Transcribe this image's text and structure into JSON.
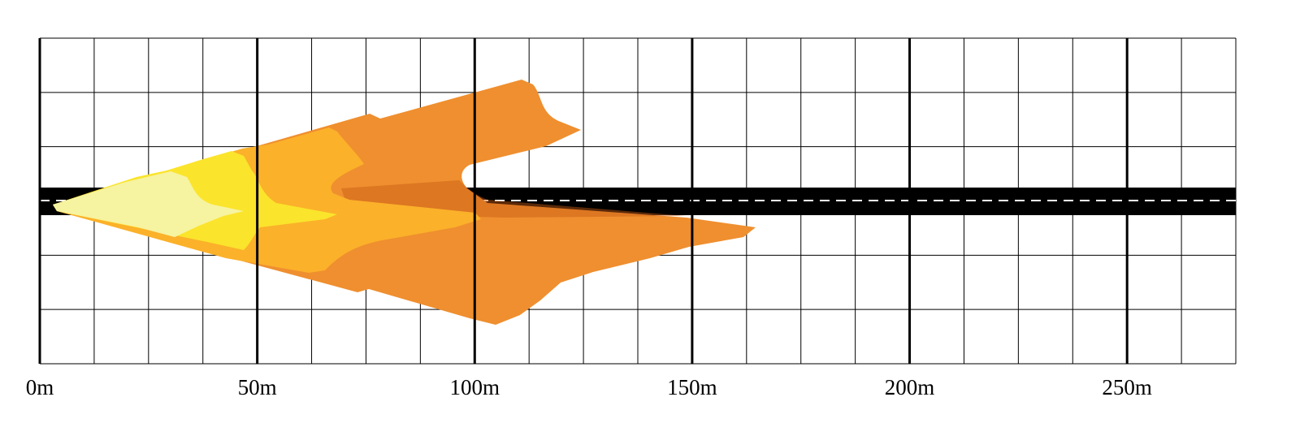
{
  "diagram": {
    "x_axis": {
      "unit": "m",
      "range": [
        0,
        275
      ],
      "minor_step": 12.5,
      "major_step": 50,
      "tick_labels": [
        "0m",
        "50m",
        "100m",
        "150m",
        "200m",
        "250m"
      ]
    },
    "lateral_rows": 6,
    "road": {
      "color": "#000000",
      "center_dash_color": "#ffffff"
    },
    "beam_zones": [
      {
        "color": "#ef8f2f"
      },
      {
        "color": "#fbb12a"
      },
      {
        "color": "#fbe42c"
      },
      {
        "color": "#f6f3a1"
      }
    ],
    "overlay_color": "#c85c14"
  }
}
